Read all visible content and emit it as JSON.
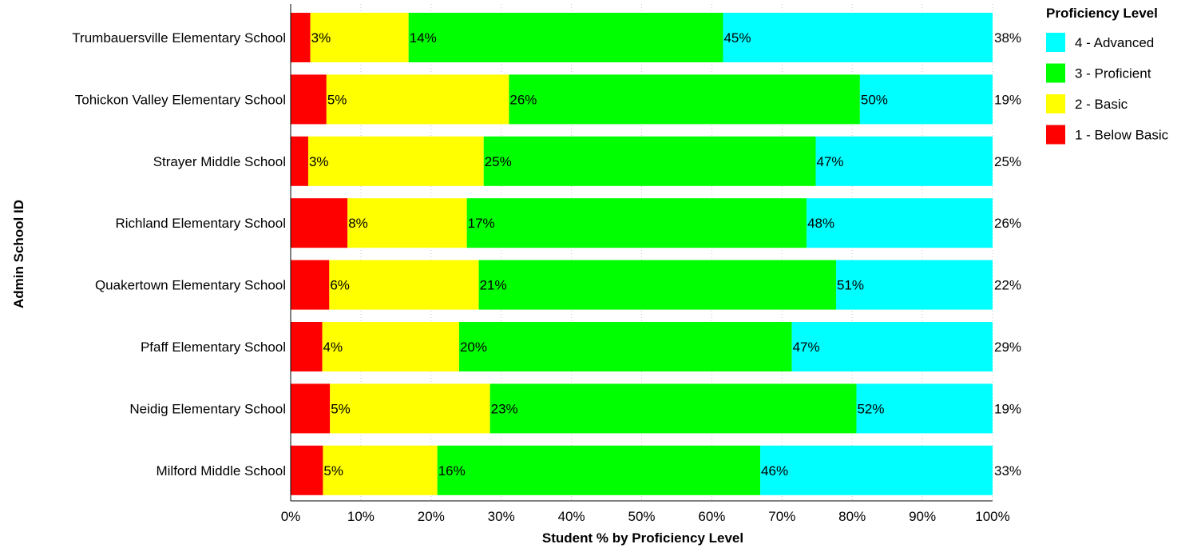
{
  "chart_data": {
    "type": "bar",
    "orientation": "horizontal",
    "stacked": true,
    "title": "",
    "xlabel": "Student % by Proficiency Level",
    "ylabel": "Admin School ID",
    "xlim": [
      0,
      100
    ],
    "x_ticks": [
      "0%",
      "10%",
      "20%",
      "30%",
      "40%",
      "50%",
      "60%",
      "70%",
      "80%",
      "90%",
      "100%"
    ],
    "grid": "vertical dotted",
    "legend_position": "top-right",
    "legend_title": "Proficiency Level",
    "legend_order": [
      "4 - Advanced",
      "3 - Proficient",
      "2 - Basic",
      "1 - Below Basic"
    ],
    "categories": [
      "Trumbauersville Elementary School",
      "Tohickon Valley Elementary School",
      "Strayer Middle School",
      "Richland Elementary School",
      "Quakertown Elementary School",
      "Pfaff Elementary School",
      "Neidig Elementary School",
      "Milford Middle School"
    ],
    "series": [
      {
        "name": "1 - Below Basic",
        "color": "#ff0000",
        "values": [
          2.8,
          5.1,
          2.5,
          8.1,
          5.5,
          4.5,
          5.6,
          4.6
        ],
        "labels": [
          "",
          "",
          "",
          "",
          "",
          "",
          "",
          ""
        ]
      },
      {
        "name": "2 - Basic",
        "color": "#ffff00",
        "values": [
          14,
          26,
          25,
          17,
          21.3,
          19.5,
          22.8,
          16.3
        ],
        "labels": [
          "3%",
          "5%",
          "3%",
          "8%",
          "6%",
          "4%",
          "5%",
          "5%"
        ]
      },
      {
        "name": "3 - Proficient",
        "color": "#00ff00",
        "values": [
          44.8,
          50,
          47.3,
          48.4,
          50.9,
          47.4,
          52.2,
          46
        ],
        "labels": [
          "14%",
          "26%",
          "25%",
          "17%",
          "21%",
          "20%",
          "23%",
          "16%"
        ]
      },
      {
        "name": "4 - Advanced",
        "color": "#00ffff",
        "values": [
          38.4,
          18.9,
          25.2,
          26.5,
          22.3,
          28.6,
          19.4,
          33.1
        ],
        "labels": [
          "45%",
          "50%",
          "47%",
          "48%",
          "51%",
          "47%",
          "52%",
          "46%"
        ]
      }
    ],
    "end_labels": [
      "38%",
      "19%",
      "25%",
      "26%",
      "22%",
      "29%",
      "19%",
      "33%"
    ]
  }
}
